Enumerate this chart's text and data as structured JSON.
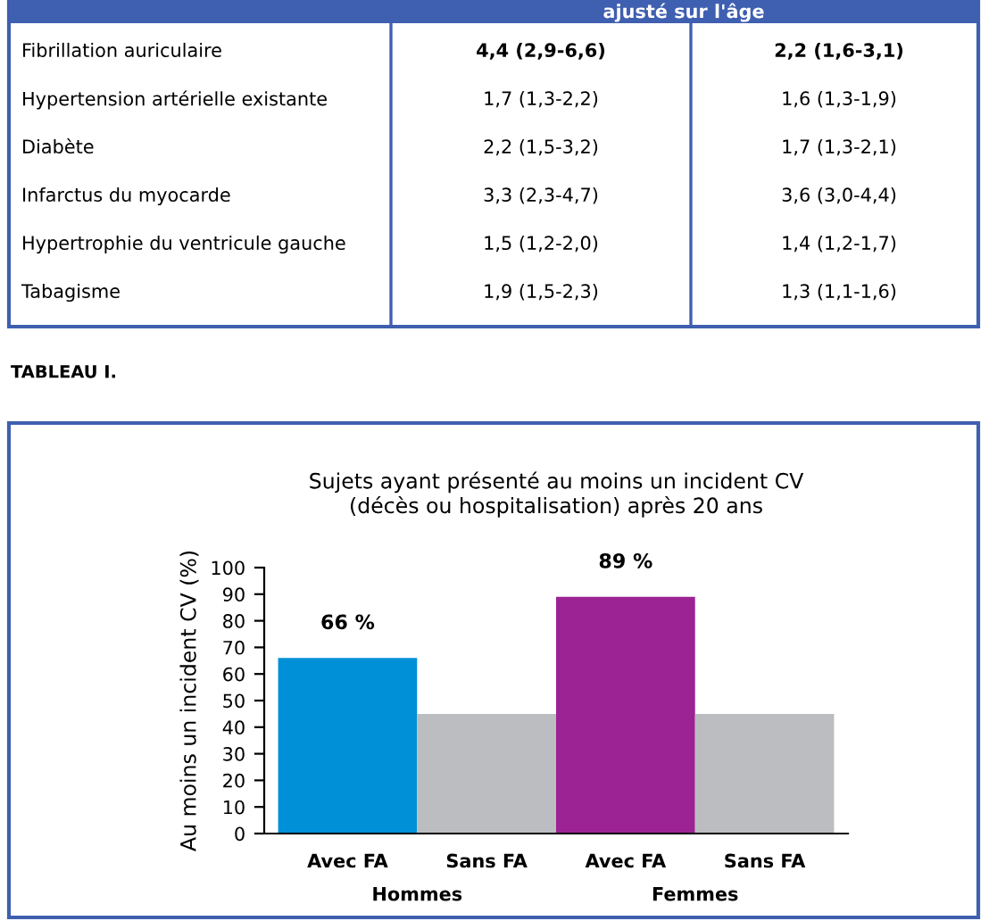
{
  "chart_data": [
    {
      "type": "other",
      "annotations": [
        "ajusté sur l'âge",
        "Fibrillation auriculaire",
        "4,4 (2,9-6,6)",
        "2,2 (1,6-3,1)",
        "Hypertension artérielle existante",
        "1,7 (1,3-2,2)",
        "1,6 (1,3-1,9)",
        "Diabète",
        "2,2 (1,5-3,2)",
        "1,7 (1,3-2,1)",
        "Infarctus du myocarde",
        "3,3 (2,3-4,7)",
        "3,6 (3,0-4,4)",
        "Hypertrophie du ventricule gauche",
        "1,5 (1,2-2,0)",
        "1,4 (1,2-1,7)",
        "Tabagisme",
        "1,9 (1,5-2,3)",
        "1,3 (1,1-1,6)",
        "TABLEAU I."
      ]
    },
    {
      "type": "bar",
      "title": "Sujets ayant présenté au moins un incident CV\n(décès ou hospitalisation) après 20 ans",
      "ylabel": "Au moins un incident CV (%)",
      "categories": [
        "Avec FA",
        "Sans FA",
        "Avec FA",
        "Sans FA"
      ],
      "values": [
        66,
        45,
        89,
        45
      ],
      "colors": [
        "#0090d8",
        "#bcbdc0",
        "#9b2393",
        "#bcbdc0"
      ],
      "value_labels": [
        "66 %",
        null,
        "89 %",
        null
      ],
      "annotations": [
        "Hommes",
        "Femmes"
      ],
      "ylim": [
        0,
        100
      ],
      "yticks": [
        0,
        10,
        20,
        30,
        40,
        50,
        60,
        70,
        80,
        90,
        100
      ],
      "grid": false,
      "legend": false
    }
  ]
}
